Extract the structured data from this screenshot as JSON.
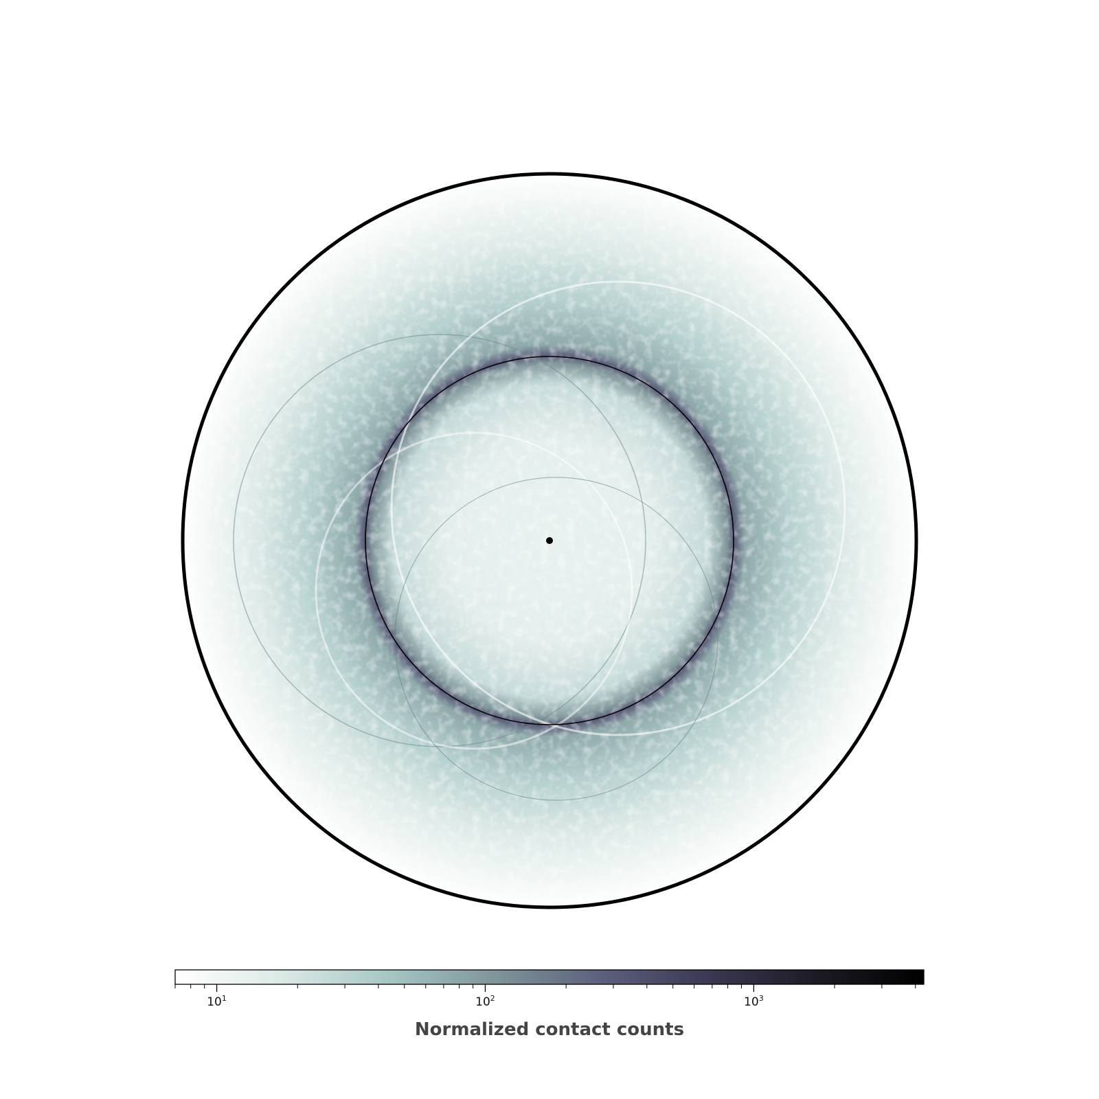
{
  "chart_data": {
    "type": "heatmap",
    "projection": "polar-disk",
    "title": "",
    "grid": false,
    "outer_boundary_circle": true,
    "inner_reference_circle": {
      "radius_fraction_of_outer": 0.502
    },
    "center_marker": true,
    "colormap": {
      "name": "bone_r",
      "stops": [
        "#ffffff",
        "#dbe9e6",
        "#a6c6c4",
        "#7f9599",
        "#5c5f7c",
        "#3a3852",
        "#1c1b24",
        "#000000"
      ]
    },
    "colorbar": {
      "scale": "log",
      "range": [
        7,
        4300
      ],
      "orientation": "horizontal",
      "placement": "bottom",
      "label": "Normalized contact counts",
      "major_ticks": [
        {
          "value": 10,
          "base": "10",
          "exp": "1"
        },
        {
          "value": 100,
          "base": "10",
          "exp": "2"
        },
        {
          "value": 1000,
          "base": "10",
          "exp": "3"
        }
      ],
      "minor_ticks": [
        7,
        8,
        9,
        20,
        30,
        40,
        50,
        60,
        70,
        80,
        90,
        200,
        300,
        400,
        500,
        600,
        700,
        800,
        900,
        2000,
        3000,
        4000
      ]
    },
    "density_profile": {
      "radial_peak_fraction_of_outer": 0.502,
      "peak_value": 300,
      "inner_level": 14,
      "outer_level": 7
    }
  }
}
